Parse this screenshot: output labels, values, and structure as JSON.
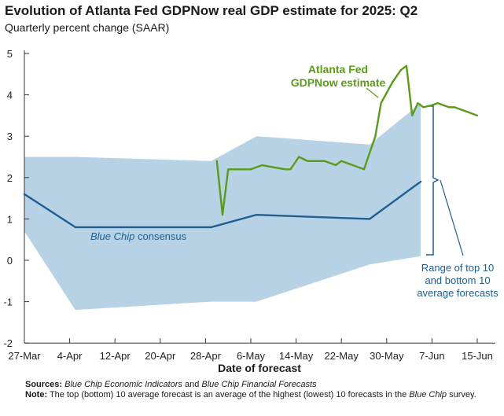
{
  "chart_data": {
    "type": "line",
    "title": "Evolution of Atlanta Fed GDPNow real GDP estimate for 2025: Q2",
    "subtitle": "Quarterly percent change (SAAR)",
    "xlabel": "Date of forecast",
    "ylabel": "",
    "ylim": [
      -2,
      5
    ],
    "yticks": [
      "5",
      "4",
      "3",
      "2",
      "1",
      "0",
      "-1",
      "-2"
    ],
    "x_tick_labels": [
      "27-Mar",
      "4-Apr",
      "12-Apr",
      "20-Apr",
      "28-Apr",
      "6-May",
      "14-May",
      "22-May",
      "30-May",
      "7-Jun",
      "15-Jun"
    ],
    "x_tick_days": [
      0,
      8,
      16,
      24,
      32,
      40,
      48,
      56,
      64,
      72,
      80
    ],
    "series": [
      {
        "name": "Atlanta Fed GDPNow estimate",
        "color": "#5c9a1b",
        "points": [
          [
            34,
            2.4
          ],
          [
            35,
            1.1
          ],
          [
            36,
            2.2
          ],
          [
            38,
            2.2
          ],
          [
            40,
            2.2
          ],
          [
            42,
            2.3
          ],
          [
            44,
            2.25
          ],
          [
            46,
            2.2
          ],
          [
            47,
            2.2
          ],
          [
            48.5,
            2.5
          ],
          [
            50,
            2.4
          ],
          [
            52,
            2.4
          ],
          [
            53,
            2.4
          ],
          [
            55,
            2.3
          ],
          [
            56,
            2.4
          ],
          [
            58,
            2.3
          ],
          [
            60,
            2.2
          ],
          [
            62,
            3.0
          ],
          [
            63,
            3.8
          ],
          [
            65,
            4.3
          ],
          [
            66.5,
            4.6
          ],
          [
            67.5,
            4.7
          ],
          [
            68.5,
            3.5
          ],
          [
            69.5,
            3.8
          ],
          [
            70.5,
            3.7
          ],
          [
            72,
            3.75
          ],
          [
            73,
            3.8
          ],
          [
            75,
            3.7
          ],
          [
            76,
            3.7
          ],
          [
            78,
            3.6
          ],
          [
            80,
            3.5
          ]
        ]
      },
      {
        "name": "Blue Chip consensus",
        "color": "#1f5e91",
        "points": [
          [
            0,
            1.6
          ],
          [
            9,
            0.8
          ],
          [
            33,
            0.8
          ],
          [
            41,
            1.1
          ],
          [
            61,
            1.0
          ],
          [
            70,
            1.9
          ]
        ]
      }
    ],
    "range_band": {
      "name": "Range of top 10 and bottom 10 average forecasts",
      "color": "#b8d2e5",
      "upper": [
        [
          0,
          2.5
        ],
        [
          9,
          2.5
        ],
        [
          33,
          2.4
        ],
        [
          41,
          3.0
        ],
        [
          61,
          2.8
        ],
        [
          70,
          3.8
        ]
      ],
      "lower": [
        [
          0,
          0.7
        ],
        [
          9,
          -1.2
        ],
        [
          33,
          -1.0
        ],
        [
          41,
          -1.0
        ],
        [
          61,
          -0.1
        ],
        [
          70,
          0.1
        ]
      ]
    },
    "annotations": {
      "gdpnow_line1": "Atlanta Fed",
      "gdpnow_line2": "GDPNow estimate",
      "bluechip_italic": "Blue Chip",
      "bluechip_rest": " consensus",
      "range_line1": "Range of top 10",
      "range_line2": "and bottom 10",
      "range_line3": "average forecasts"
    }
  },
  "footer": {
    "sources_label": "Sources:",
    "sources_italic_1": "Blue Chip Economic Indicators",
    "sources_and": " and ",
    "sources_italic_2": "Blue Chip Financial Forecasts",
    "note_label": "Note:",
    "note_text_1": " The top (bottom) 10 average forecast is an average of the highest (lowest) 10 forecasts in the ",
    "note_italic": "Blue Chip",
    "note_text_2": " survey."
  }
}
